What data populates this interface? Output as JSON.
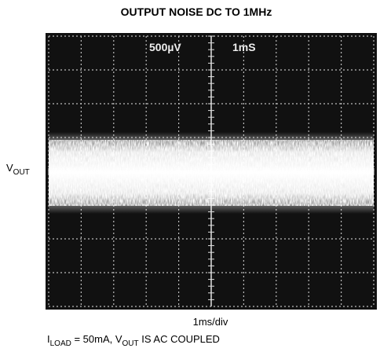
{
  "title": "OUTPUT NOISE DC TO 1MHz",
  "screen": {
    "vertical_scale": "500µV",
    "time_scale": "1mS"
  },
  "y_label": {
    "main": "V",
    "sub": "OUT"
  },
  "x_label": "1ms/div",
  "note": [
    {
      "main": "I",
      "sub": "LOAD"
    },
    {
      "main": " = 50mA, V"
    },
    {
      "sub": "OUT"
    },
    {
      "main": " IS AC COUPLED"
    }
  ]
}
